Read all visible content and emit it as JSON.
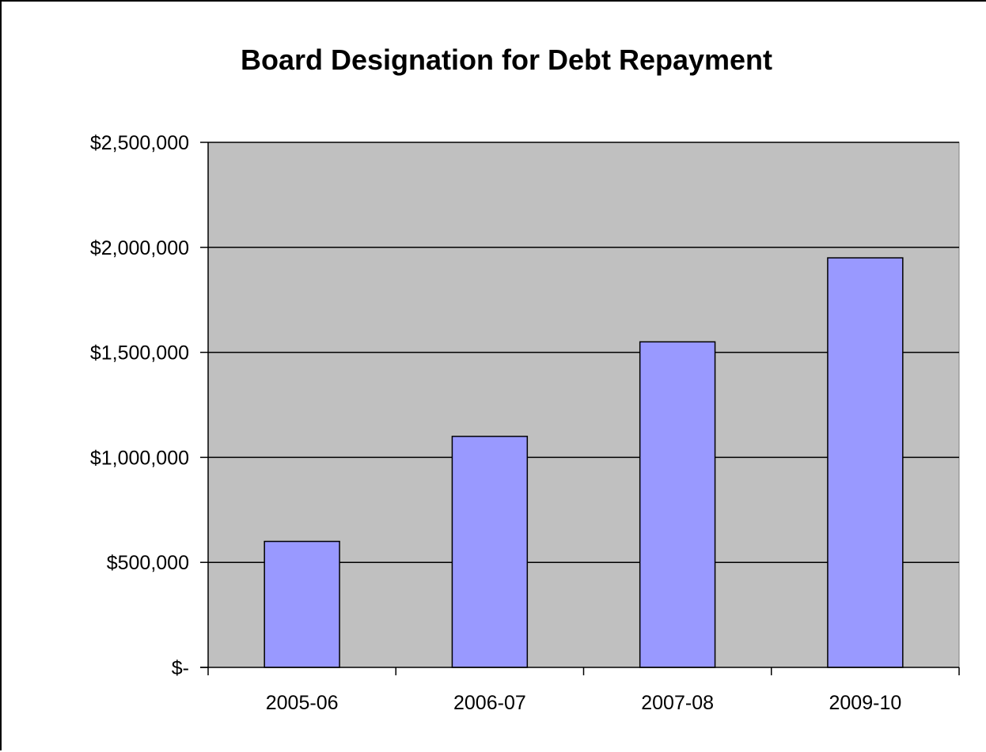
{
  "chart_data": {
    "type": "bar",
    "title": "Board Designation for Debt Repayment",
    "xlabel": "",
    "ylabel": "",
    "categories": [
      "2005-06",
      "2006-07",
      "2007-08",
      "2009-10"
    ],
    "values": [
      600000,
      1100000,
      1550000,
      1950000
    ],
    "ylim": [
      0,
      2500000
    ],
    "yticks": [
      0,
      500000,
      1000000,
      1500000,
      2000000,
      2500000
    ],
    "ytick_labels": [
      "$-",
      "$500,000",
      "$1,000,000",
      "$1,500,000",
      "$2,000,000",
      "$2,500,000"
    ],
    "grid": true,
    "legend": "none",
    "colors": {
      "bar_fill": "#9999ff",
      "bar_stroke": "#000000",
      "plot_background": "#c0c0c0",
      "gridline": "#000000"
    }
  }
}
